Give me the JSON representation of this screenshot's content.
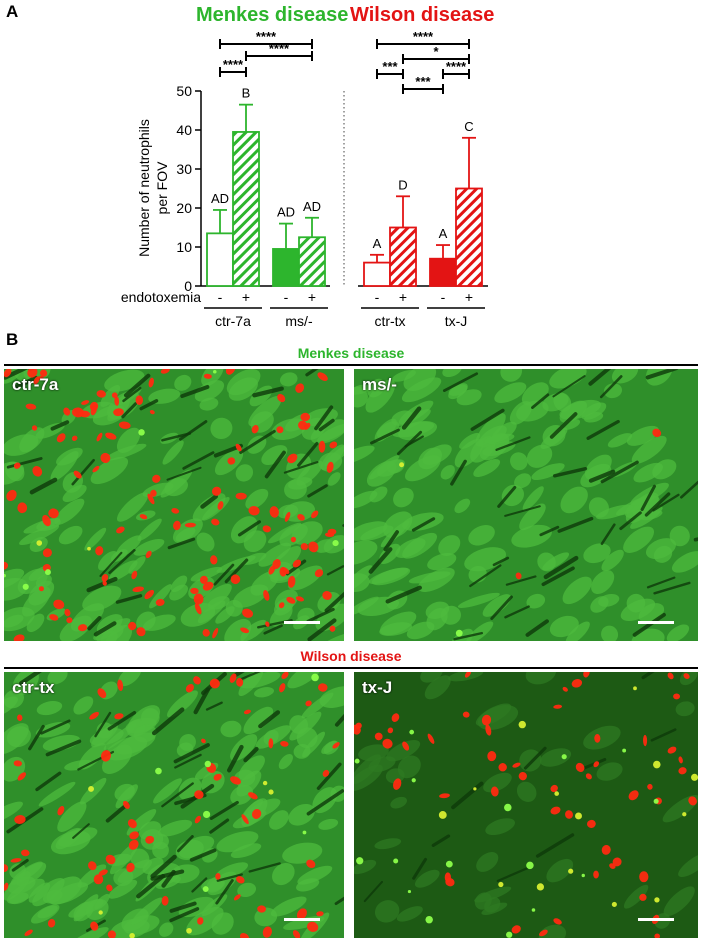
{
  "panel_a_label": "A",
  "panel_b_label": "B",
  "menkes_title": "Menkes disease",
  "wilson_title": "Wilson disease",
  "colors": {
    "menkes": "#2db52d",
    "wilson": "#e31414",
    "axis": "#000000"
  },
  "chart_data": {
    "type": "bar",
    "ylabel": "Number of neutrophils per FOV",
    "ylim": [
      0,
      50
    ],
    "yticks": [
      0,
      10,
      20,
      30,
      40,
      50
    ],
    "x_row_label": "endotoxemia",
    "groups": [
      {
        "name": "ctr-7a",
        "disease": "Menkes"
      },
      {
        "name": "ms/-",
        "disease": "Menkes"
      },
      {
        "name": "ctr-tx",
        "disease": "Wilson"
      },
      {
        "name": "tx-J",
        "disease": "Wilson"
      }
    ],
    "bars": [
      {
        "group": "ctr-7a",
        "endotoxemia": "-",
        "value": 13.5,
        "error": 6.0,
        "letter": "AD",
        "color": "#2db52d",
        "fill": "open"
      },
      {
        "group": "ctr-7a",
        "endotoxemia": "+",
        "value": 39.5,
        "error": 7.0,
        "letter": "B",
        "color": "#2db52d",
        "fill": "hatched"
      },
      {
        "group": "ms/-",
        "endotoxemia": "-",
        "value": 9.5,
        "error": 6.5,
        "letter": "AD",
        "color": "#2db52d",
        "fill": "solid"
      },
      {
        "group": "ms/-",
        "endotoxemia": "+",
        "value": 12.5,
        "error": 5.0,
        "letter": "AD",
        "color": "#2db52d",
        "fill": "hatched"
      },
      {
        "group": "ctr-tx",
        "endotoxemia": "-",
        "value": 6.0,
        "error": 2.0,
        "letter": "A",
        "color": "#e31414",
        "fill": "open"
      },
      {
        "group": "ctr-tx",
        "endotoxemia": "+",
        "value": 15.0,
        "error": 8.0,
        "letter": "D",
        "color": "#e31414",
        "fill": "hatched"
      },
      {
        "group": "tx-J",
        "endotoxemia": "-",
        "value": 7.0,
        "error": 3.5,
        "letter": "A",
        "color": "#e31414",
        "fill": "solid"
      },
      {
        "group": "tx-J",
        "endotoxemia": "+",
        "value": 25.0,
        "error": 13.0,
        "letter": "C",
        "color": "#e31414",
        "fill": "hatched"
      }
    ],
    "significance": [
      {
        "from": 0,
        "to": 3,
        "label": "****"
      },
      {
        "from": 1,
        "to": 3,
        "label": "****"
      },
      {
        "from": 0,
        "to": 1,
        "label": "****"
      },
      {
        "from": 4,
        "to": 7,
        "label": "****"
      },
      {
        "from": 5,
        "to": 7,
        "label": "*"
      },
      {
        "from": 4,
        "to": 5,
        "label": "***"
      },
      {
        "from": 6,
        "to": 7,
        "label": "****"
      },
      {
        "from": 5,
        "to": 6,
        "label": "***"
      }
    ]
  },
  "micrographs": {
    "menkes": {
      "title": "Menkes disease",
      "left_label": "ctr-7a",
      "right_label": "ms/-"
    },
    "wilson": {
      "title": "Wilson disease",
      "left_label": "ctr-tx",
      "right_label": "tx-J"
    }
  }
}
